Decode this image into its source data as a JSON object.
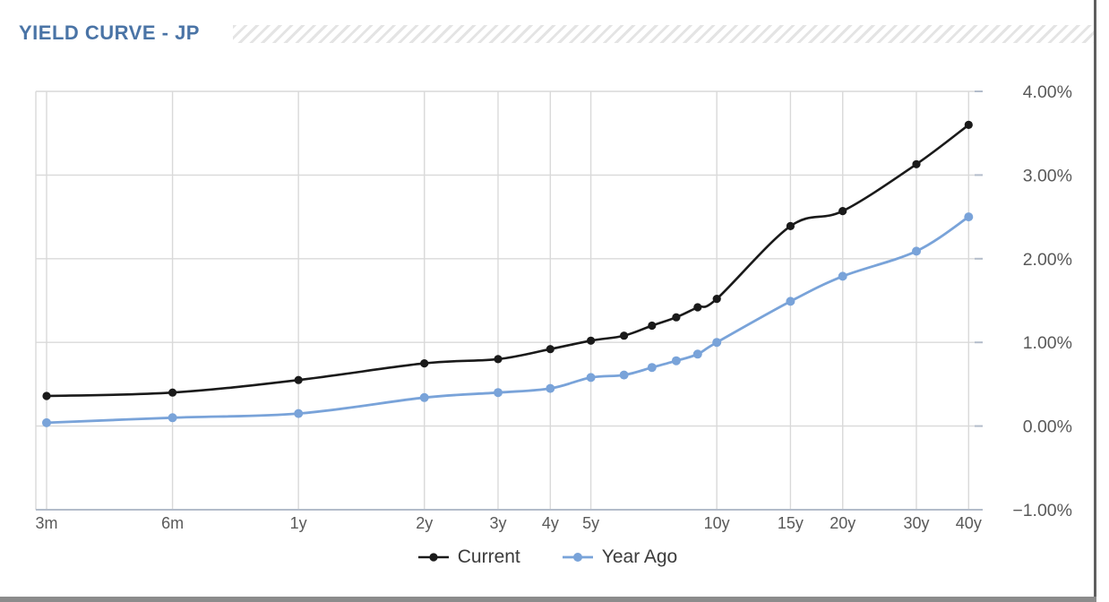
{
  "header": {
    "title": "YIELD CURVE - JP"
  },
  "chart_data": {
    "type": "line",
    "title": "YIELD CURVE - JP",
    "x_axis": {
      "scale": "log",
      "categories": [
        "3m",
        "6m",
        "1y",
        "2y",
        "3y",
        "4y",
        "5y",
        "6y",
        "7y",
        "8y",
        "9y",
        "10y",
        "15y",
        "20y",
        "30y",
        "40y"
      ],
      "maturity_years": [
        0.25,
        0.5,
        1,
        2,
        3,
        4,
        5,
        6,
        7,
        8,
        9,
        10,
        15,
        20,
        30,
        40
      ],
      "labeled_ticks": [
        {
          "label": "3m",
          "years": 0.25
        },
        {
          "label": "6m",
          "years": 0.5
        },
        {
          "label": "1y",
          "years": 1
        },
        {
          "label": "2y",
          "years": 2
        },
        {
          "label": "3y",
          "years": 3
        },
        {
          "label": "4y",
          "years": 4
        },
        {
          "label": "5y",
          "years": 5
        },
        {
          "label": "10y",
          "years": 10
        },
        {
          "label": "15y",
          "years": 15
        },
        {
          "label": "20y",
          "years": 20
        },
        {
          "label": "30y",
          "years": 30
        },
        {
          "label": "40y",
          "years": 40
        }
      ]
    },
    "y_axis": {
      "unit": "%",
      "range": [
        -1,
        4
      ],
      "ticks": [
        {
          "label": "4.00%",
          "value": 4
        },
        {
          "label": "3.00%",
          "value": 3
        },
        {
          "label": "2.00%",
          "value": 2
        },
        {
          "label": "1.00%",
          "value": 1
        },
        {
          "label": "0.00%",
          "value": 0
        },
        {
          "label": "−1.00%",
          "value": -1
        }
      ]
    },
    "series": [
      {
        "name": "Current",
        "color": "#1a1a1a",
        "values": [
          0.36,
          0.4,
          0.55,
          0.75,
          0.8,
          0.92,
          1.02,
          1.08,
          1.2,
          1.3,
          1.42,
          1.52,
          2.39,
          2.57,
          3.13,
          3.6
        ]
      },
      {
        "name": "Year Ago",
        "color": "#79a3d9",
        "values": [
          0.04,
          0.1,
          0.15,
          0.34,
          0.4,
          0.45,
          0.58,
          0.61,
          0.7,
          0.78,
          0.86,
          1.0,
          1.49,
          1.79,
          2.09,
          2.5
        ]
      }
    ],
    "grid": true,
    "legend_position": "bottom"
  },
  "colors": {
    "title": "#4a74a6",
    "gridline": "#d9d9d9",
    "axis_line": "#b3bcca",
    "tick_label": "#595959",
    "legend_text": "#3b3b3b"
  }
}
